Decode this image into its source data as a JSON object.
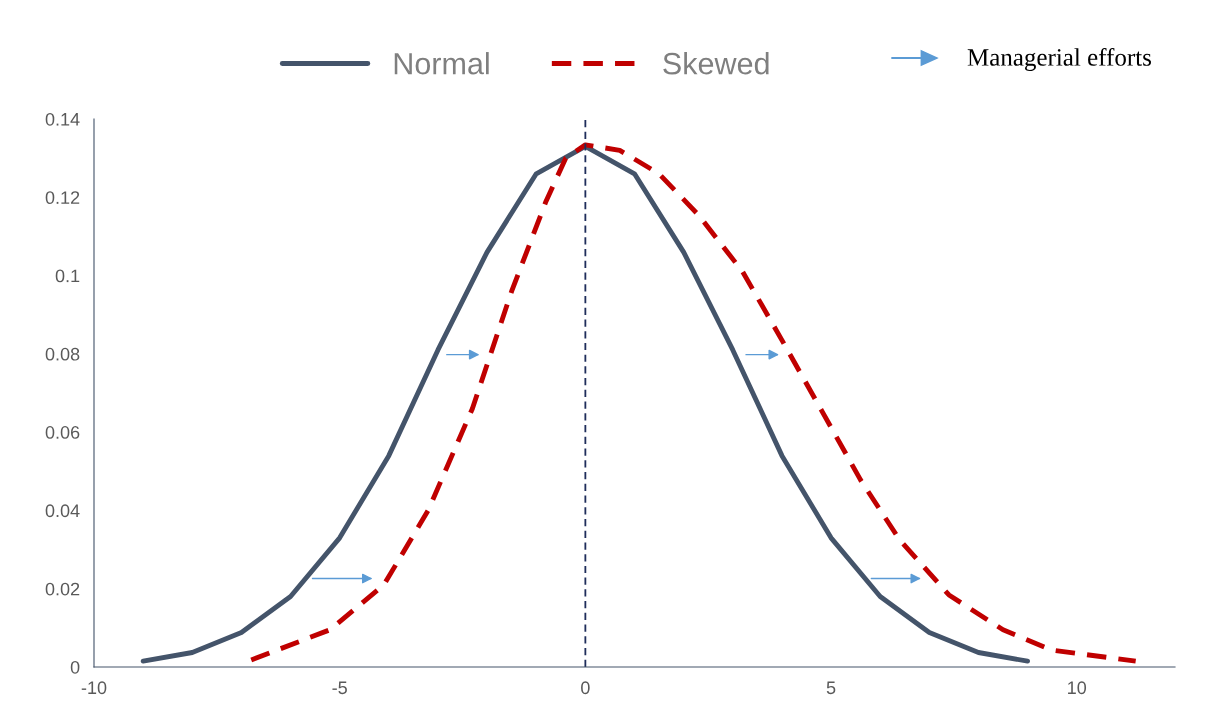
{
  "chart_data": {
    "type": "line",
    "xlim": [
      -10,
      12
    ],
    "xticks": [
      -10,
      -5,
      0,
      5,
      10
    ],
    "ylim": [
      0,
      0.14
    ],
    "yticks": [
      0,
      0.02,
      0.04,
      0.06,
      0.08,
      0.1,
      0.12,
      0.14
    ],
    "grid": false,
    "legend": "top",
    "marker": "none",
    "series": [
      {
        "name": "Normal",
        "color": "#44546a",
        "line_style": "solid",
        "x": [
          -9,
          -8,
          -7,
          -6,
          -5,
          -4,
          -3,
          -2,
          -1,
          0,
          1,
          2,
          3,
          4,
          5,
          6,
          7,
          8,
          9
        ],
        "values": [
          0.0015,
          0.0037,
          0.0088,
          0.018,
          0.033,
          0.054,
          0.081,
          0.106,
          0.126,
          0.133,
          0.126,
          0.106,
          0.081,
          0.054,
          0.033,
          0.018,
          0.0088,
          0.0037,
          0.0015
        ]
      },
      {
        "name": "Skewed",
        "color": "#c00000",
        "line_style": "dashed",
        "x": [
          -6.8,
          -5.2,
          -4.1,
          -3.2,
          -2.3,
          -1.5,
          -0.8,
          -0.4,
          0,
          0.7,
          1.5,
          2.3,
          3.2,
          4.0,
          4.8,
          5.6,
          6.4,
          7.4,
          8.5,
          9.5,
          11.2
        ],
        "values": [
          0.0018,
          0.0095,
          0.021,
          0.04,
          0.066,
          0.096,
          0.119,
          0.13,
          0.1334,
          0.132,
          0.126,
          0.1155,
          0.101,
          0.0835,
          0.0657,
          0.0478,
          0.0324,
          0.0184,
          0.0095,
          0.0043,
          0.0015
        ]
      }
    ],
    "ref_lines": [
      {
        "axis": "x",
        "value": 0,
        "color": "#1f2d5a",
        "line_style": "dashed"
      }
    ],
    "annotations": [
      "Managerial efforts"
    ]
  }
}
